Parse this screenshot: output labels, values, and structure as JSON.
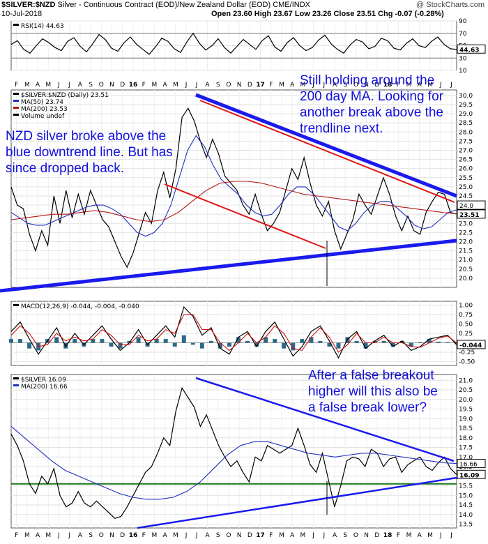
{
  "header": {
    "symbol": "$SILVER:$NZD",
    "description": "Silver - Continuous Contract (EOD)/New Zealand Dollar (EOD)",
    "exchange": "CME/INDX",
    "date": "10-Jul-2018",
    "quote": "Open 23.60  High 23.67  Low 23.26  Close 23.51  Chg -0.07 (-0.28%)",
    "brand": "@ StockCharts.com"
  },
  "annotations": {
    "top_right": [
      "Still holding around the",
      "200 day MA. Looking for",
      "another break above the",
      "trendline next."
    ],
    "top_left": [
      "NZD silver broke above the",
      "blue downtrend line. But has",
      "since dropped back."
    ],
    "bottom_right": [
      "After a false breakout",
      "higher will this also be",
      "a false break lower?"
    ]
  },
  "x_axis": {
    "months": [
      "F",
      "M",
      "A",
      "M",
      "J",
      "J",
      "A",
      "S",
      "O",
      "N",
      "D",
      "16",
      "F",
      "M",
      "A",
      "M",
      "J",
      "J",
      "A",
      "S",
      "O",
      "N",
      "D",
      "17",
      "F",
      "M",
      "A",
      "M",
      "J",
      "J",
      "A",
      "S",
      "O",
      "N",
      "D",
      "18",
      "F",
      "M",
      "A",
      "M",
      "J",
      "J"
    ],
    "year_markers": [
      "16",
      "17",
      "18"
    ]
  },
  "chart_data": [
    {
      "type": "line",
      "title": "RSI(14) 44.63",
      "legend": [
        "RSI(14) 44.63"
      ],
      "ylim": [
        10,
        90
      ],
      "yticks": [
        90,
        70,
        50,
        30,
        10
      ],
      "reference_lines": [
        70,
        30
      ],
      "last_value_label": "44.63",
      "series": [
        {
          "name": "RSI(14)",
          "color": "#000000",
          "values": [
            52,
            58,
            44,
            38,
            50,
            61,
            55,
            47,
            42,
            57,
            63,
            49,
            40,
            53,
            68,
            60,
            46,
            41,
            55,
            64,
            52,
            44,
            36,
            48,
            62,
            57,
            45,
            39,
            56,
            70,
            54,
            43,
            50,
            61,
            47,
            38,
            49,
            60,
            52,
            44,
            58,
            66,
            48,
            41,
            55,
            63,
            50,
            42,
            47,
            59,
            67,
            53,
            44,
            38,
            51,
            60,
            56,
            45,
            49,
            62,
            58,
            46,
            43,
            54,
            61,
            50,
            47,
            57,
            64,
            52,
            45,
            44
          ]
        }
      ]
    },
    {
      "type": "line",
      "title": "$SILVER:$NZD (Daily) 23.51",
      "legend": [
        "$SILVER:$NZD (Daily) 23.51",
        "MA(50) 23.74",
        "MA(200) 23.53",
        "Volume undef"
      ],
      "ylim": [
        19.5,
        30.3
      ],
      "yticks": [
        30.0,
        29.5,
        29.0,
        28.5,
        28.0,
        27.5,
        27.0,
        26.5,
        26.0,
        25.5,
        25.0,
        24.5,
        24.0,
        23.5,
        23.0,
        22.5,
        22.0,
        21.5,
        21.0,
        20.5,
        20.0
      ],
      "last_value_labels": [
        "24.0",
        "23.51"
      ],
      "series": [
        {
          "name": "$SILVER:$NZD",
          "color": "#000000",
          "values": [
            25.0,
            24.0,
            23.8,
            22.4,
            21.5,
            22.6,
            21.8,
            24.5,
            23.0,
            24.8,
            23.3,
            24.6,
            23.5,
            24.8,
            24.0,
            23.2,
            22.8,
            22.0,
            21.2,
            20.6,
            21.4,
            22.5,
            23.6,
            23.0,
            24.8,
            25.8,
            24.4,
            26.0,
            28.8,
            29.3,
            28.6,
            27.5,
            26.6,
            27.6,
            26.8,
            25.6,
            25.2,
            24.8,
            24.0,
            23.5,
            24.6,
            23.5,
            22.6,
            23.0,
            23.6,
            24.8,
            26.0,
            25.4,
            26.6,
            25.2,
            24.0,
            23.4,
            24.2,
            22.6,
            21.6,
            22.4,
            23.2,
            24.6,
            24.0,
            23.5,
            24.5,
            25.5,
            24.6,
            23.4,
            22.6,
            23.4,
            22.6,
            22.4,
            23.6,
            24.2,
            24.7,
            24.6,
            23.6,
            23.51
          ]
        },
        {
          "name": "MA(50)",
          "color": "#1f2fbd",
          "values": [
            23.6,
            23.3,
            23.0,
            22.9,
            22.9,
            23.1,
            23.3,
            23.5,
            23.7,
            23.9,
            24.0,
            24.0,
            23.8,
            23.5,
            23.0,
            22.5,
            22.3,
            22.5,
            23.0,
            24.0,
            25.5,
            27.0,
            27.8,
            27.2,
            26.2,
            25.4,
            25.0,
            24.6,
            24.0,
            23.6,
            23.4,
            23.5,
            24.0,
            24.6,
            25.0,
            25.0,
            24.6,
            24.0,
            23.4,
            22.8,
            22.6,
            23.0,
            23.6,
            24.0,
            24.2,
            24.2,
            23.8,
            23.4,
            22.9,
            22.7,
            22.8,
            23.2,
            23.6,
            23.74
          ]
        },
        {
          "name": "MA(200)",
          "color": "#b01818",
          "values": [
            23.2,
            23.3,
            23.4,
            23.5,
            23.5,
            23.6,
            23.7,
            23.6,
            23.4,
            23.2,
            23.1,
            23.2,
            23.6,
            24.2,
            24.8,
            25.2,
            25.3,
            25.3,
            25.2,
            25.0,
            24.8,
            24.6,
            24.5,
            24.4,
            24.3,
            24.2,
            24.1,
            24.0,
            23.9,
            23.8,
            23.7,
            23.6,
            23.53
          ]
        }
      ]
    },
    {
      "type": "line",
      "title": "MACD(12,26,9) -0.044, -0.004, -0.040",
      "legend": [
        "MACD(12,26,9) -0.044, -0.004, -0.040"
      ],
      "ylim": [
        -0.6,
        1.1
      ],
      "yticks": [
        1.0,
        0.75,
        0.5,
        0.25,
        0.0,
        -0.25,
        -0.5
      ],
      "last_value_label": "-0.044",
      "series": [
        {
          "name": "MACD",
          "color": "#000000",
          "values": [
            0.3,
            0.55,
            0.1,
            -0.3,
            0.05,
            0.4,
            -0.1,
            0.25,
            -0.05,
            0.2,
            0.45,
            0.1,
            -0.2,
            0.0,
            0.35,
            -0.05,
            0.2,
            0.45,
            0.15,
            0.95,
            0.7,
            0.2,
            0.4,
            -0.15,
            -0.3,
            0.15,
            0.3,
            -0.1,
            0.3,
            0.55,
            0.1,
            -0.35,
            -0.1,
            0.3,
            0.45,
            0.05,
            -0.4,
            0.1,
            0.3,
            -0.15,
            0.05,
            0.2,
            -0.1,
            0.05,
            -0.2,
            -0.1,
            0.1,
            0.15,
            0.2,
            -0.044
          ]
        },
        {
          "name": "Signal",
          "color": "#cc1111",
          "values": [
            0.2,
            0.45,
            0.25,
            -0.1,
            -0.05,
            0.25,
            0.05,
            0.15,
            0.05,
            0.1,
            0.35,
            0.2,
            -0.05,
            -0.05,
            0.2,
            0.05,
            0.1,
            0.35,
            0.25,
            0.75,
            0.75,
            0.35,
            0.35,
            0.0,
            -0.2,
            0.0,
            0.25,
            0.0,
            0.15,
            0.45,
            0.25,
            -0.15,
            -0.2,
            0.15,
            0.4,
            0.15,
            -0.25,
            -0.05,
            0.25,
            0.0,
            0.0,
            0.15,
            0.0,
            0.0,
            -0.1,
            -0.12,
            0.0,
            0.12,
            0.18,
            -0.004
          ]
        }
      ]
    },
    {
      "type": "line",
      "title": "$SILVER 16.09",
      "legend": [
        "$SILVER 16.09",
        "MA(200) 16.66"
      ],
      "ylim": [
        13.3,
        21.3
      ],
      "yticks": [
        21.0,
        20.5,
        20.0,
        19.5,
        19.0,
        18.5,
        18.0,
        17.5,
        17.0,
        16.5,
        16.0,
        15.5,
        15.0,
        14.5,
        14.0,
        13.5
      ],
      "last_value_labels": [
        "16.66",
        "16.09"
      ],
      "support_level": 15.6,
      "series": [
        {
          "name": "$SILVER",
          "color": "#000000",
          "values": [
            18.2,
            17.6,
            16.8,
            15.6,
            15.1,
            16.0,
            15.6,
            16.4,
            15.0,
            14.4,
            14.6,
            15.2,
            14.6,
            14.4,
            14.7,
            14.4,
            14.1,
            13.8,
            13.9,
            14.4,
            15.0,
            15.6,
            16.2,
            16.5,
            17.2,
            18.0,
            17.6,
            19.4,
            20.6,
            20.1,
            19.6,
            18.6,
            19.2,
            18.4,
            17.6,
            17.0,
            16.5,
            16.8,
            16.2,
            15.7,
            17.0,
            16.8,
            17.6,
            17.4,
            17.2,
            17.4,
            17.6,
            18.5,
            17.6,
            16.6,
            16.2,
            17.2,
            15.8,
            14.4,
            15.5,
            16.8,
            17.0,
            16.9,
            16.5,
            17.4,
            17.2,
            16.5,
            16.9,
            17.0,
            16.2,
            16.6,
            16.8,
            17.0,
            16.5,
            16.3,
            16.7,
            17.0,
            16.4,
            16.09
          ]
        },
        {
          "name": "MA(200)",
          "color": "#1f2fbd",
          "values": [
            18.6,
            18.0,
            17.4,
            16.8,
            16.3,
            16.0,
            15.7,
            15.4,
            15.1,
            14.9,
            14.8,
            14.8,
            14.9,
            15.2,
            15.7,
            16.4,
            17.1,
            17.6,
            17.8,
            17.8,
            17.6,
            17.4,
            17.2,
            17.1,
            17.0,
            17.1,
            17.2,
            17.2,
            17.1,
            17.0,
            16.9,
            16.8,
            16.7,
            16.66
          ]
        }
      ]
    }
  ]
}
